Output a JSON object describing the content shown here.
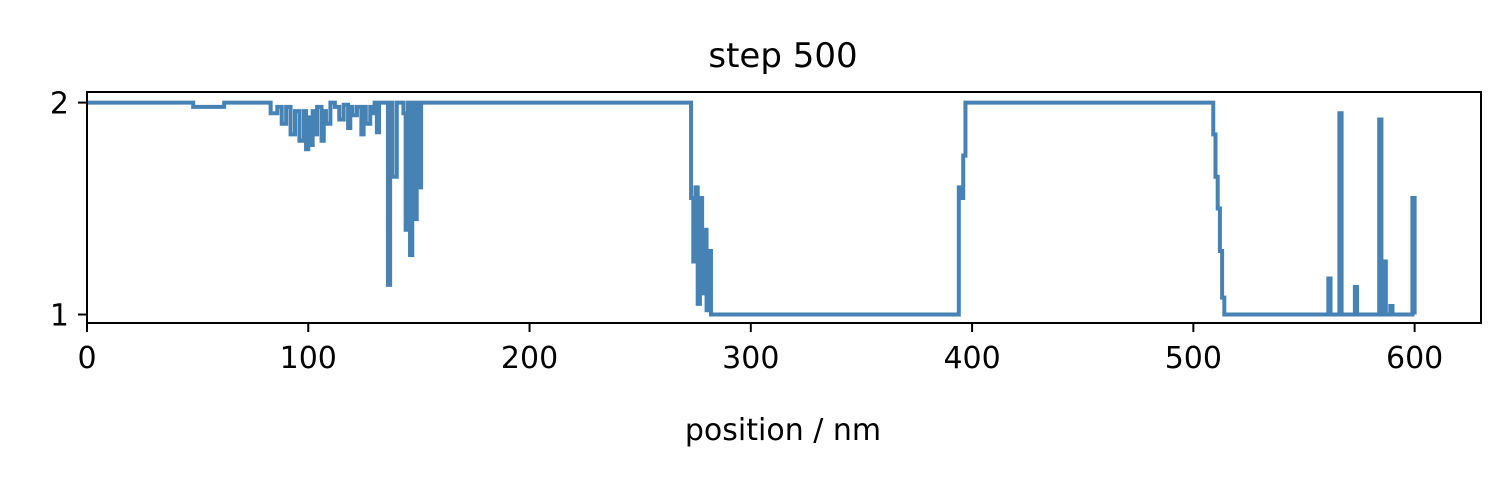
{
  "chart_data": {
    "type": "line",
    "title": "step 500",
    "xlabel": "position / nm",
    "ylabel": "",
    "xlim": [
      0,
      630
    ],
    "ylim": [
      0.96,
      2.05
    ],
    "xticks": [
      0,
      100,
      200,
      300,
      400,
      500,
      600
    ],
    "yticks": [
      1,
      2
    ],
    "grid": false,
    "line_color": "#4682b4",
    "series": [
      {
        "x": [
          0,
          45,
          48,
          55,
          62,
          70,
          80,
          83,
          86,
          88,
          90,
          92,
          94,
          96,
          98,
          99,
          100,
          101,
          102,
          103,
          104,
          106,
          107,
          108,
          110,
          112,
          114,
          116,
          118,
          119,
          120,
          122,
          124,
          125,
          126,
          128,
          129,
          130,
          131,
          132,
          135,
          136,
          137,
          138,
          140,
          142,
          143,
          144,
          145,
          146,
          147,
          148,
          149,
          150,
          151,
          152,
          270,
          272,
          273,
          274,
          275,
          276,
          277,
          278,
          279,
          280,
          281,
          282,
          283,
          284,
          300,
          350,
          393,
          394,
          395,
          396,
          397,
          398,
          400,
          450,
          500,
          508,
          509,
          510,
          511,
          512,
          513,
          514,
          515,
          516,
          530,
          550,
          560,
          561,
          562,
          563,
          565,
          566,
          567,
          568,
          569,
          572,
          573,
          574,
          575,
          576,
          583,
          584,
          585,
          586,
          587,
          588,
          589,
          590,
          591,
          592,
          598,
          599,
          600
        ],
        "y": [
          2.0,
          2.0,
          1.98,
          1.98,
          2.0,
          2.0,
          2.0,
          1.95,
          1.98,
          1.9,
          1.98,
          1.85,
          1.96,
          1.82,
          1.96,
          1.78,
          1.93,
          1.8,
          1.96,
          1.85,
          1.98,
          1.82,
          1.96,
          1.9,
          2.0,
          1.98,
          1.92,
          1.99,
          1.88,
          1.98,
          1.94,
          1.98,
          1.85,
          1.98,
          1.9,
          1.98,
          1.95,
          2.0,
          1.86,
          2.0,
          2.0,
          1.14,
          2.0,
          1.65,
          2.0,
          2.0,
          1.95,
          1.4,
          2.0,
          1.28,
          2.0,
          1.45,
          2.0,
          1.6,
          2.0,
          2.0,
          2.0,
          2.0,
          1.55,
          1.25,
          1.6,
          1.05,
          1.55,
          1.1,
          1.4,
          1.02,
          1.3,
          1.0,
          1.0,
          1.0,
          1.0,
          1.0,
          1.0,
          1.6,
          1.55,
          1.75,
          2.0,
          2.0,
          2.0,
          2.0,
          2.0,
          2.0,
          1.85,
          1.65,
          1.5,
          1.3,
          1.08,
          1.0,
          1.0,
          1.0,
          1.0,
          1.0,
          1.0,
          1.17,
          1.0,
          1.0,
          1.0,
          1.95,
          1.0,
          1.0,
          1.0,
          1.0,
          1.13,
          1.0,
          1.0,
          1.0,
          1.0,
          1.92,
          1.0,
          1.25,
          1.0,
          1.0,
          1.04,
          1.0,
          1.0,
          1.0,
          1.0,
          1.55,
          1.0
        ]
      }
    ]
  }
}
